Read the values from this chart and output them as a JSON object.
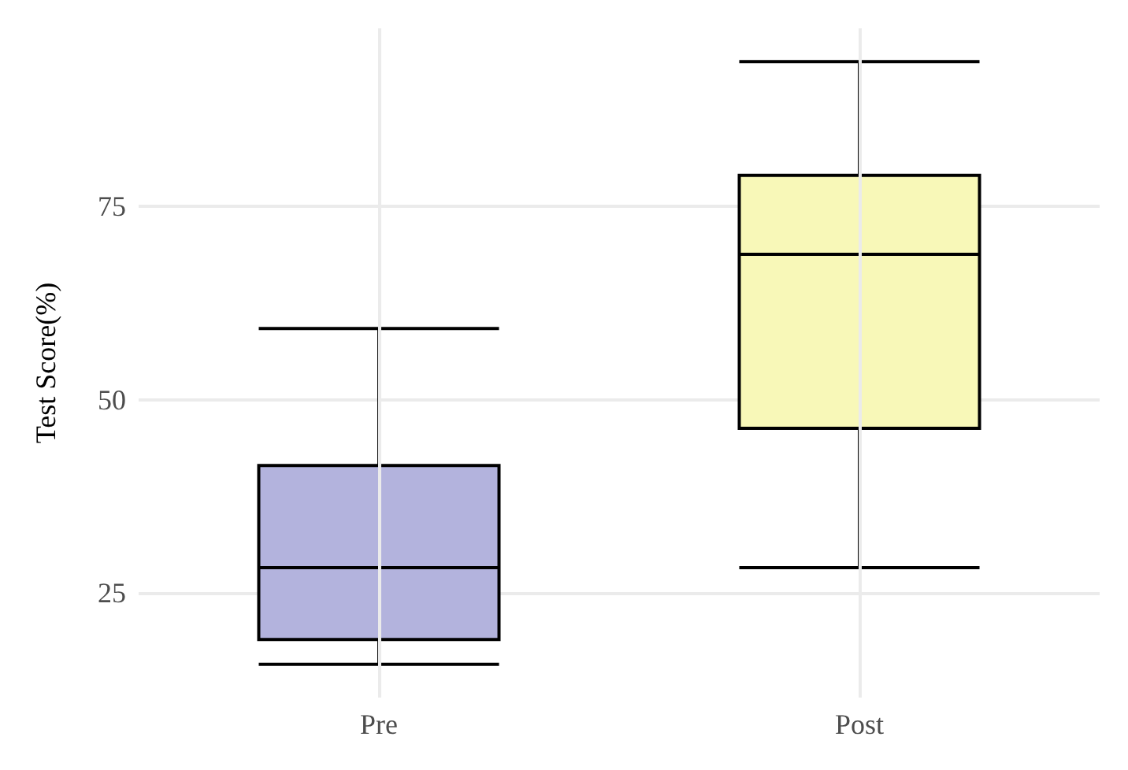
{
  "chart_data": {
    "type": "box",
    "ylabel": "Test Score(%)",
    "categories": [
      "Pre",
      "Post"
    ],
    "series": [
      {
        "color": "#b3b3dd",
        "boxes": [
          {
            "low": 15.8,
            "q1": 19,
            "median": 28.3,
            "q3": 41.5,
            "high": 59.2
          },
          null
        ]
      },
      {
        "color": "#f8f8b8",
        "boxes": [
          null,
          {
            "low": 28.3,
            "q1": 46.3,
            "median": 68.8,
            "q3": 79,
            "high": 93.7
          }
        ]
      }
    ],
    "ylim": [
      11.5,
      98
    ],
    "yticks": [
      25,
      50,
      75
    ],
    "grid": true
  }
}
